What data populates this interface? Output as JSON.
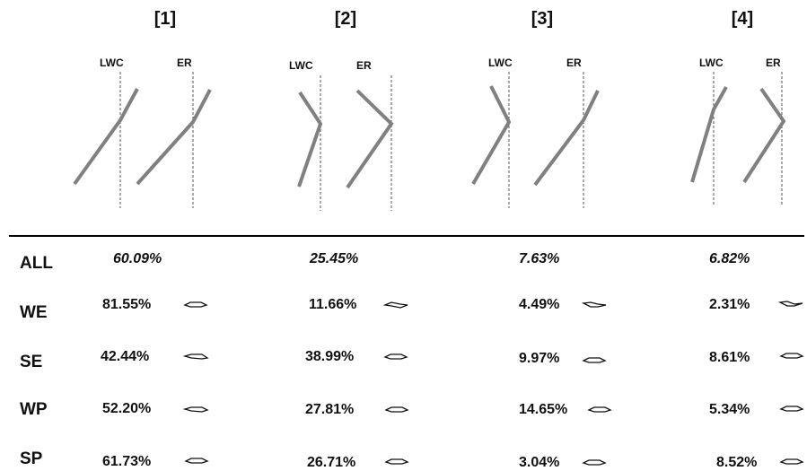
{
  "columns": [
    {
      "title": "[1]",
      "labels": [
        "LWC",
        "ER"
      ],
      "total": "60.09%",
      "rows": [
        "81.55%",
        "42.44%",
        "52.20%",
        "61.73%"
      ]
    },
    {
      "title": "[2]",
      "labels": [
        "LWC",
        "ER"
      ],
      "total": "25.45%",
      "rows": [
        "11.66%",
        "38.99%",
        "27.81%",
        "26.71%"
      ]
    },
    {
      "title": "[3]",
      "labels": [
        "LWC",
        "ER"
      ],
      "total": "7.63%",
      "rows": [
        "4.49%",
        "9.97%",
        "14.65%",
        "3.04%"
      ]
    },
    {
      "title": "[4]",
      "labels": [
        "LWC",
        "ER"
      ],
      "total": "6.82%",
      "rows": [
        "2.31%",
        "8.61%",
        "5.34%",
        "8.52%"
      ]
    }
  ],
  "row_labels": [
    "ALL",
    "WE",
    "SE",
    "WP",
    "SP"
  ],
  "colors": {
    "pattern_line": "#808080",
    "dotted_line": "#555555",
    "rule": "#000000"
  }
}
